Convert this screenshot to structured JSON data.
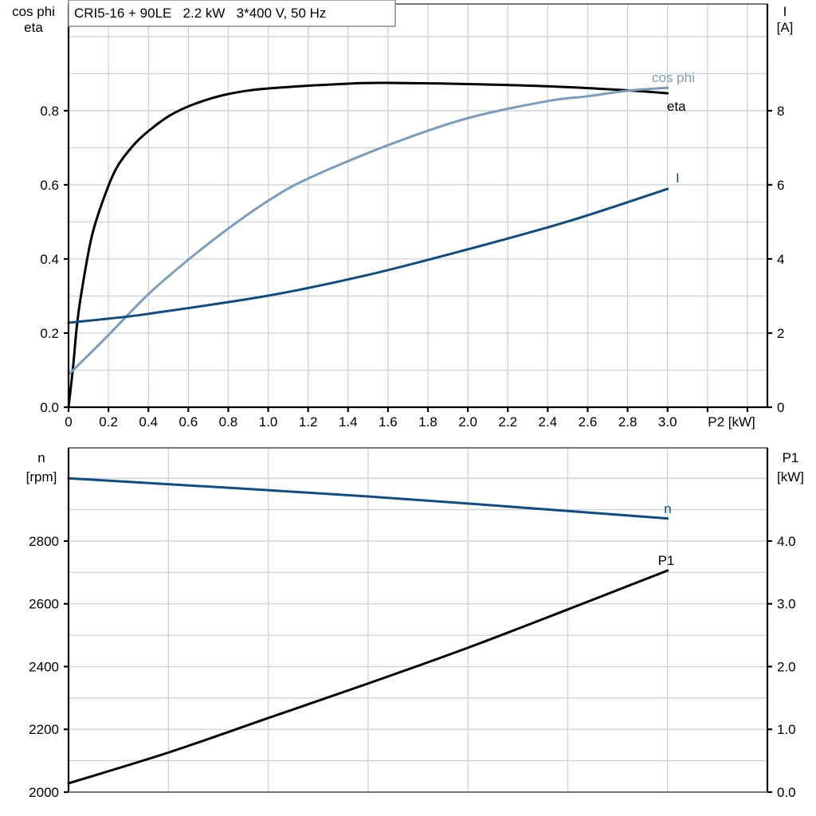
{
  "chart_data": [
    {
      "type": "line",
      "title": "CRI5-16 + 90LE   2.2 kW   3*400 V, 50 Hz",
      "xlabel": "P2 [kW]",
      "ylabel_left": [
        "cos phi",
        "eta"
      ],
      "ylabel_right": [
        "I",
        "[A]"
      ],
      "xlim": [
        0,
        3.5
      ],
      "ylim_left": [
        0,
        1.088
      ],
      "ylim_right": [
        0,
        10.88
      ],
      "grid": true,
      "x_ticks": [
        "0",
        "0.2",
        "0.4",
        "0.6",
        "0.8",
        "1.0",
        "1.2",
        "1.4",
        "1.6",
        "1.8",
        "2.0",
        "2.2",
        "2.4",
        "2.6",
        "2.8",
        "3.0"
      ],
      "x_tick_values": [
        0,
        0.2,
        0.4,
        0.6,
        0.8,
        1.0,
        1.2,
        1.4,
        1.6,
        1.8,
        2.0,
        2.2,
        2.4,
        2.6,
        2.8,
        3.0
      ],
      "y_left_ticks": [
        "0.0",
        "0.2",
        "0.4",
        "0.6",
        "0.8"
      ],
      "y_left_tick_values": [
        0,
        0.2,
        0.4,
        0.6,
        0.8
      ],
      "y_right_ticks": [
        "0",
        "2",
        "4",
        "6",
        "8"
      ],
      "y_right_tick_values": [
        0,
        2,
        4,
        6,
        8
      ],
      "series": [
        {
          "name": "eta",
          "axis": "left",
          "color": "#000000",
          "x": [
            0,
            0.023,
            0.04,
            0.062,
            0.116,
            0.182,
            0.242,
            0.322,
            0.4,
            0.51,
            0.64,
            0.8,
            1.0,
            1.4,
            1.6,
            2.0,
            2.4,
            2.8,
            3.0
          ],
          "y": [
            0,
            0.11,
            0.21,
            0.3,
            0.46,
            0.572,
            0.647,
            0.705,
            0.745,
            0.788,
            0.82,
            0.845,
            0.86,
            0.873,
            0.875,
            0.872,
            0.866,
            0.855,
            0.847
          ]
        },
        {
          "name": "cos phi",
          "axis": "left",
          "color": "#7a9cbd",
          "x": [
            0,
            0.195,
            0.4,
            0.6,
            0.8,
            1.0,
            1.2,
            1.6,
            2.0,
            2.4,
            2.6,
            2.8,
            3.0
          ],
          "y": [
            0.088,
            0.192,
            0.305,
            0.398,
            0.482,
            0.557,
            0.617,
            0.707,
            0.78,
            0.826,
            0.839,
            0.854,
            0.862
          ]
        },
        {
          "name": "I",
          "axis": "right",
          "color": "#0e4c85",
          "x": [
            0,
            0.2,
            0.4,
            1.0,
            1.5,
            2.0,
            2.5,
            3.0
          ],
          "y": [
            2.28,
            2.39,
            2.52,
            3.01,
            3.57,
            4.26,
            5.01,
            5.89
          ]
        }
      ]
    },
    {
      "type": "line",
      "ylabel_left": [
        "n",
        "[rpm]"
      ],
      "ylabel_right": [
        "P1",
        "[kW]"
      ],
      "xlim": [
        0,
        3.5
      ],
      "ylim_left": [
        2000,
        3097
      ],
      "ylim_right": [
        0,
        5.485
      ],
      "grid": true,
      "y_left_ticks": [
        "2000",
        "2200",
        "2400",
        "2600",
        "2800"
      ],
      "y_left_tick_values": [
        2000,
        2200,
        2400,
        2600,
        2800
      ],
      "y_right_ticks": [
        "0.0",
        "1.0",
        "2.0",
        "3.0",
        "4.0"
      ],
      "y_right_tick_values": [
        0,
        1,
        2,
        3,
        4
      ],
      "series": [
        {
          "name": "n",
          "axis": "left",
          "color": "#0e4c85",
          "x": [
            0,
            1.5,
            3.0
          ],
          "y": [
            3000,
            2942,
            2872
          ]
        },
        {
          "name": "P1",
          "axis": "right",
          "color": "#000000",
          "x": [
            0,
            0.5,
            1.0,
            1.5,
            2.0,
            2.5,
            3.0
          ],
          "y": [
            0.14,
            0.63,
            1.18,
            1.73,
            2.3,
            2.91,
            3.53
          ]
        }
      ]
    }
  ]
}
